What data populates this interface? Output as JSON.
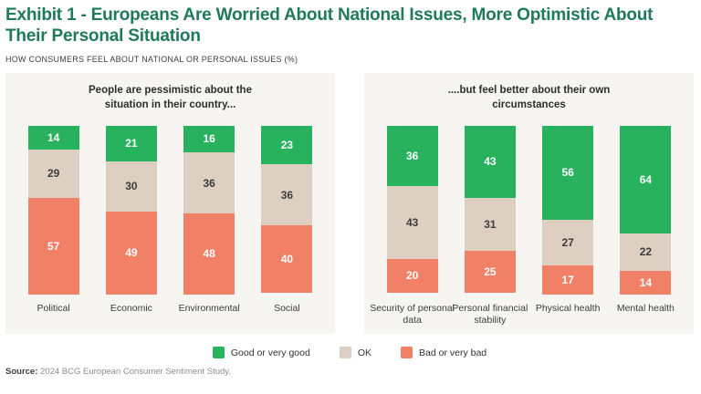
{
  "header": {
    "title": "Exhibit 1 - Europeans Are Worried About National Issues, More Optimistic About Their Personal Situation",
    "subtitle": "HOW CONSUMERS FEEL ABOUT NATIONAL OR PERSONAL ISSUES (%)"
  },
  "colors": {
    "title": "#1e7a57",
    "good": "#28b25e",
    "ok": "#ddd0c3",
    "bad": "#f08066",
    "panel_bg": "#f6f5f2",
    "ok_text": "#3b3b3b",
    "light_text": "#ffffff"
  },
  "chart_data": [
    {
      "type": "bar",
      "stacked": true,
      "title": "People are pessimistic about the situation in their country...",
      "categories": [
        "Political",
        "Economic",
        "Environmental",
        "Social"
      ],
      "series": [
        {
          "name": "Good or very good",
          "color_key": "good",
          "values": [
            14,
            21,
            16,
            23
          ]
        },
        {
          "name": "OK",
          "color_key": "ok",
          "values": [
            29,
            30,
            36,
            36
          ]
        },
        {
          "name": "Bad or very bad",
          "color_key": "bad",
          "values": [
            57,
            49,
            48,
            40
          ]
        }
      ],
      "ylim": [
        0,
        100
      ],
      "grid": false,
      "value_labels": "inside"
    },
    {
      "type": "bar",
      "stacked": true,
      "title": "....but feel better about their own circumstances",
      "categories": [
        "Security of personal data",
        "Personal financial stability",
        "Physical health",
        "Mental health"
      ],
      "series": [
        {
          "name": "Good or very good",
          "color_key": "good",
          "values": [
            36,
            43,
            56,
            64
          ]
        },
        {
          "name": "OK",
          "color_key": "ok",
          "values": [
            43,
            31,
            27,
            22
          ]
        },
        {
          "name": "Bad or very bad",
          "color_key": "bad",
          "values": [
            20,
            25,
            17,
            14
          ]
        }
      ],
      "ylim": [
        0,
        100
      ],
      "grid": false,
      "value_labels": "inside"
    }
  ],
  "legend": [
    {
      "label": "Good or very good",
      "color_key": "good"
    },
    {
      "label": "OK",
      "color_key": "ok"
    },
    {
      "label": "Bad or very bad",
      "color_key": "bad"
    }
  ],
  "source": {
    "label": "Source:",
    "text": "2024 BCG European Consumer Sentiment Study."
  }
}
